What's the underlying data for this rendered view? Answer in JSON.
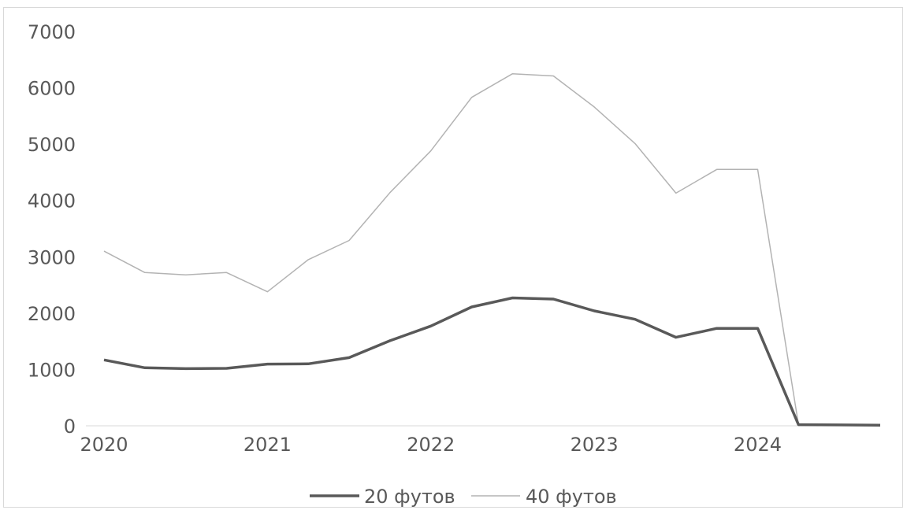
{
  "chart_data": {
    "type": "line",
    "x": [
      "2020 Q1",
      "2020 Q2",
      "2020 Q3",
      "2020 Q4",
      "2021 Q1",
      "2021 Q2",
      "2021 Q3",
      "2021 Q4",
      "2022 Q1",
      "2022 Q2",
      "2022 Q3",
      "2022 Q4",
      "2023 Q1",
      "2023 Q2",
      "2023 Q3",
      "2023 Q4",
      "2024 Q1",
      "2024 Q2",
      "2024 Q3",
      "2024 Q4"
    ],
    "x_tick_labels": [
      "2020",
      "2021",
      "2022",
      "2023",
      "2024"
    ],
    "y_tick_labels": [
      "0",
      "1000",
      "2000",
      "3000",
      "4000",
      "5000",
      "6000",
      "7000"
    ],
    "ylim": [
      0,
      7000
    ],
    "series": [
      {
        "name": "20 футов",
        "color": "#595959",
        "values": [
          1170,
          1030,
          1015,
          1020,
          1095,
          1100,
          1210,
          1510,
          1770,
          2110,
          2270,
          2250,
          2040,
          1890,
          1570,
          1730,
          1730,
          20,
          15,
          10
        ]
      },
      {
        "name": "40 футов",
        "color": "#b3b3b3",
        "values": [
          3100,
          2720,
          2680,
          2720,
          2380,
          2950,
          3290,
          4140,
          4880,
          5830,
          6250,
          6210,
          5660,
          5010,
          4130,
          4550,
          4550,
          20,
          15,
          10
        ]
      }
    ],
    "grid": false,
    "legend_position": "bottom"
  }
}
